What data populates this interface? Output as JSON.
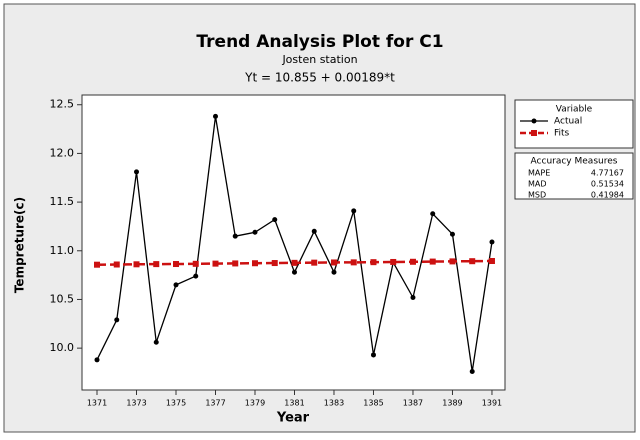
{
  "chart_data": {
    "type": "line",
    "title": "Trend Analysis Plot for C1",
    "subtitle": "Josten station",
    "equation": "Yt = 10.855 + 0.00189*t",
    "x_label": "Year",
    "y_label": "Tempreture(c)",
    "x": [
      1371,
      1372,
      1373,
      1374,
      1375,
      1376,
      1377,
      1378,
      1379,
      1380,
      1381,
      1382,
      1383,
      1384,
      1385,
      1386,
      1387,
      1388,
      1389,
      1390,
      1391
    ],
    "series": [
      {
        "name": "Actual",
        "color": "#000000",
        "marker": "circle",
        "dashed": false,
        "values": [
          9.88,
          10.29,
          11.81,
          10.06,
          10.65,
          10.74,
          12.38,
          11.15,
          11.19,
          11.32,
          10.78,
          11.2,
          10.78,
          11.41,
          9.93,
          10.88,
          10.52,
          11.38,
          11.17,
          9.76,
          11.09
        ]
      },
      {
        "name": "Fits",
        "color": "#cc1111",
        "marker": "square",
        "dashed": true,
        "values": [
          10.857,
          10.859,
          10.861,
          10.863,
          10.864,
          10.866,
          10.868,
          10.87,
          10.872,
          10.874,
          10.876,
          10.878,
          10.88,
          10.881,
          10.883,
          10.885,
          10.887,
          10.889,
          10.891,
          10.893,
          10.895
        ]
      }
    ],
    "legend_title": "Variable",
    "accuracy": {
      "title": "Accuracy Measures",
      "rows": [
        [
          "MAPE",
          4.77167
        ],
        [
          "MAD",
          0.51534
        ],
        [
          "MSD",
          0.41984
        ]
      ]
    },
    "xlim": [
      1370.24,
      1391.66
    ],
    "ylim": [
      9.57,
      12.6
    ],
    "xticks": [
      1371,
      1373,
      1375,
      1377,
      1379,
      1381,
      1383,
      1385,
      1387,
      1389,
      1391
    ],
    "yticks": [
      {
        "value": 10,
        "label": "10.0"
      },
      10.5,
      {
        "value": 11,
        "label": "11.0"
      },
      11.5,
      {
        "value": 12,
        "label": "12.0"
      },
      12.5
    ]
  }
}
